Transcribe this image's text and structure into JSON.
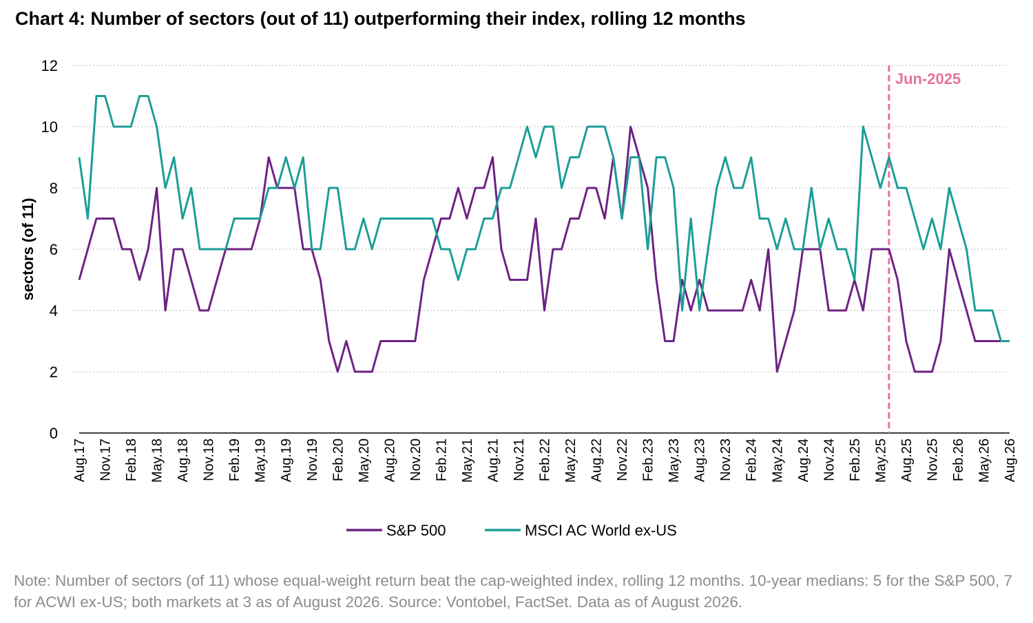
{
  "title": "Chart 4: Number of sectors (out of 11) outperforming their index, rolling 12 months",
  "note": "Note: Number of sectors (of 11) whose equal-weight return beat the cap-weighted index, rolling 12 months. 10-year medians: 5 for the S&P 500, 7 for ACWI ex-US; both markets at 3 as of August 2026. Source: Vontobel, FactSet. Data as of August 2026.",
  "colors": {
    "sp500": "#6d2383",
    "msci": "#1a9e96",
    "marker": "#e8739a",
    "grid": "#c8c8c8",
    "axis": "#000000"
  },
  "chart_data": {
    "type": "line",
    "ylabel": "sectors (of 11)",
    "ylim": [
      0,
      12
    ],
    "yticks": [
      "0",
      "2",
      "4",
      "6",
      "8",
      "10",
      "12"
    ],
    "grid": "horizontal dotted",
    "legend_position": "bottom-center",
    "x_tick_labels": [
      "Aug.17",
      "Nov.17",
      "Feb.18",
      "May.18",
      "Aug.18",
      "Nov.18",
      "Feb.19",
      "May.19",
      "Aug.19",
      "Nov.19",
      "Feb.20",
      "May.20",
      "Aug.20",
      "Nov.20",
      "Feb.21",
      "May.21",
      "Aug.21",
      "Nov.21",
      "Feb.22",
      "May.22",
      "Aug.22",
      "Nov.22",
      "Feb.23",
      "May.23",
      "Aug.23",
      "Nov.23",
      "Feb.24",
      "May.24",
      "Aug.24",
      "Nov.24",
      "Feb.25",
      "May.25",
      "Aug.25",
      "Nov.25",
      "Feb.26",
      "May.26",
      "Aug.26"
    ],
    "x_start": "Aug.17",
    "x_end": "Aug.26",
    "annotation": {
      "label": "Jun-2025",
      "x": "Jun.25"
    },
    "series": [
      {
        "name": "S&P 500",
        "values": [
          5,
          6,
          7,
          7,
          7,
          6,
          6,
          5,
          6,
          8,
          4,
          6,
          6,
          5,
          4,
          4,
          5,
          6,
          6,
          6,
          6,
          7,
          9,
          8,
          8,
          8,
          6,
          6,
          5,
          3,
          2,
          3,
          2,
          2,
          2,
          3,
          3,
          3,
          3,
          3,
          5,
          6,
          7,
          7,
          8,
          7,
          8,
          8,
          9,
          6,
          5,
          5,
          5,
          7,
          4,
          6,
          6,
          7,
          7,
          8,
          8,
          7,
          9,
          7,
          10,
          9,
          8,
          5,
          3,
          3,
          5,
          4,
          5,
          4,
          4,
          4,
          4,
          4,
          5,
          4,
          6,
          2,
          3,
          4,
          6,
          6,
          6,
          4,
          4,
          4,
          5,
          4,
          6,
          6,
          6,
          5,
          3,
          2,
          2,
          2,
          3,
          6,
          5,
          4,
          3,
          3,
          3,
          3,
          3
        ]
      },
      {
        "name": "MSCI AC World ex-US",
        "values": [
          9,
          7,
          11,
          11,
          10,
          10,
          10,
          11,
          11,
          10,
          8,
          9,
          7,
          8,
          6,
          6,
          6,
          6,
          7,
          7,
          7,
          7,
          8,
          8,
          9,
          8,
          9,
          6,
          6,
          8,
          8,
          6,
          6,
          7,
          6,
          7,
          7,
          7,
          7,
          7,
          7,
          7,
          6,
          6,
          5,
          6,
          6,
          7,
          7,
          8,
          8,
          9,
          10,
          9,
          10,
          10,
          8,
          9,
          9,
          10,
          10,
          10,
          9,
          7,
          9,
          9,
          6,
          9,
          9,
          8,
          4,
          7,
          4,
          6,
          8,
          9,
          8,
          8,
          9,
          7,
          7,
          6,
          7,
          6,
          6,
          8,
          6,
          7,
          6,
          6,
          5,
          10,
          9,
          8,
          9,
          8,
          8,
          7,
          6,
          7,
          6,
          8,
          7,
          6,
          4,
          4,
          4,
          3,
          3
        ]
      }
    ]
  }
}
